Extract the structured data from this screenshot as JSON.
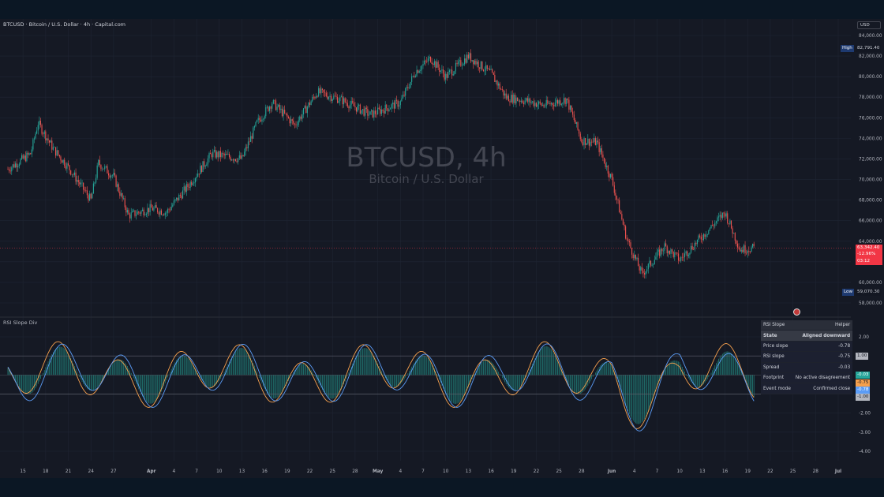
{
  "header": {
    "title": "BTCUSD · Bitcoin / U.S. Dollar · 4h · Capital.com",
    "currency": "USD"
  },
  "watermark": {
    "symbol": "BTCUSD, 4h",
    "name": "Bitcoin / U.S. Dollar"
  },
  "price_axis": {
    "ticks": [
      "84,000.00",
      "82,000.00",
      "80,000.00",
      "78,000.00",
      "76,000.00",
      "74,000.00",
      "72,000.00",
      "70,000.00",
      "68,000.00",
      "66,000.00",
      "64,000.00",
      "62,000.00",
      "60,000.00",
      "58,000.00"
    ],
    "high_label": "High",
    "high_value": "82,791.40",
    "low_label": "Low",
    "low_value": "59,070.30",
    "last_price": "63,342.40",
    "change_pct": "-12.96%",
    "countdown": "03:12"
  },
  "indicator": {
    "title": "RSI Slope Div",
    "ticks": [
      "2.00",
      "1.00",
      "-1.00",
      "-2.00",
      "-3.00",
      "-4.00"
    ],
    "tags": {
      "upper": "1.00",
      "histogram": "-0.03",
      "rsi_slope": "-0.75",
      "price_slope": "-0.78",
      "lower": "-1.00"
    }
  },
  "time_axis": {
    "labels": [
      "15",
      "18",
      "21",
      "24",
      "27",
      "Apr",
      "4",
      "7",
      "10",
      "13",
      "16",
      "19",
      "22",
      "25",
      "28",
      "May",
      "4",
      "7",
      "10",
      "13",
      "16",
      "19",
      "22",
      "25",
      "28",
      "Jun",
      "4",
      "7",
      "10",
      "13",
      "16",
      "19",
      "22",
      "25",
      "28",
      "Jul"
    ]
  },
  "helper_table": {
    "header_left": "RSI Slope",
    "header_right": "Helper",
    "rows": [
      {
        "label": "State",
        "value": "Aligned downward"
      },
      {
        "label": "Price slope",
        "value": "-0.78"
      },
      {
        "label": "RSI slope",
        "value": "-0.75"
      },
      {
        "label": "Spread",
        "value": "-0.03"
      },
      {
        "label": "Footprint",
        "value": "No active disagreement"
      },
      {
        "label": "Event mode",
        "value": "Confirmed close"
      }
    ]
  },
  "colors": {
    "up": "#26a69a",
    "down": "#ef5350",
    "price_slope_line": "#5b9cf6",
    "rsi_slope_line": "#f6a04d",
    "histogram": "#26a69a",
    "last_price_bg": "#f23645"
  },
  "chart_data": {
    "type": "candlestick",
    "symbol": "BTCUSD",
    "timeframe": "4h",
    "x_range": [
      "Mar 13",
      "Jul 1"
    ],
    "ylim": [
      57000,
      85000
    ],
    "close_path": [
      [
        "Mar 13",
        71000
      ],
      [
        "Mar 16",
        72500
      ],
      [
        "Mar 17",
        75500
      ],
      [
        "Mar 19",
        73000
      ],
      [
        "Mar 21",
        71200
      ],
      [
        "Mar 24",
        68000
      ],
      [
        "Mar 25",
        71600
      ],
      [
        "Mar 27",
        70300
      ],
      [
        "Mar 29",
        66500
      ],
      [
        "Apr 1",
        67200
      ],
      [
        "Apr 3",
        66800
      ],
      [
        "Apr 6",
        69500
      ],
      [
        "Apr 9",
        72500
      ],
      [
        "Apr 13",
        72000
      ],
      [
        "Apr 15",
        75500
      ],
      [
        "Apr 17",
        77500
      ],
      [
        "Apr 20",
        75300
      ],
      [
        "Apr 23",
        78500
      ],
      [
        "Apr 26",
        77800
      ],
      [
        "Apr 30",
        76300
      ],
      [
        "May 4",
        77500
      ],
      [
        "May 6",
        80500
      ],
      [
        "May 8",
        81800
      ],
      [
        "May 10",
        80000
      ],
      [
        "May 13",
        82000
      ],
      [
        "May 16",
        80300
      ],
      [
        "May 18",
        78000
      ],
      [
        "May 21",
        77600
      ],
      [
        "May 23",
        77200
      ],
      [
        "May 26",
        77800
      ],
      [
        "May 28",
        73800
      ],
      [
        "May 30",
        73600
      ],
      [
        "Jun 1",
        70000
      ],
      [
        "Jun 3",
        64200
      ],
      [
        "Jun 5",
        60800
      ],
      [
        "Jun 8",
        63500
      ],
      [
        "Jun 10",
        62200
      ],
      [
        "Jun 13",
        64500
      ],
      [
        "Jun 16",
        66800
      ],
      [
        "Jun 18",
        63200
      ],
      [
        "Jun 20",
        63342.4
      ]
    ],
    "high": 82791.4,
    "low": 59070.3,
    "last": 63342.4,
    "indicator": {
      "name": "RSI Slope Div",
      "ylim": [
        -4.2,
        2.6
      ],
      "bands": [
        1.0,
        -1.0
      ],
      "last_values": {
        "price_slope": -0.78,
        "rsi_slope": -0.75,
        "spread": -0.03
      }
    }
  }
}
